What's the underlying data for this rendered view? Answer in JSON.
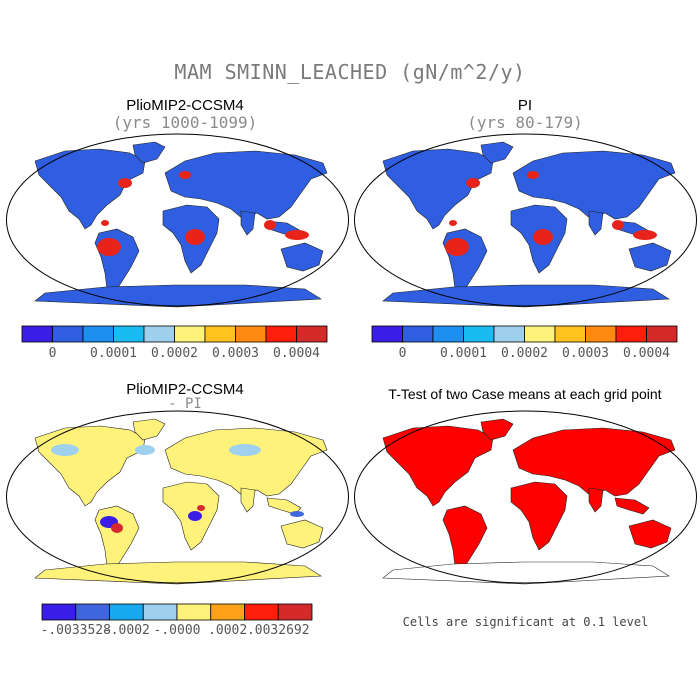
{
  "main_title": "MAM SMINN_LEACHED (gN/m^2/y)",
  "panels": [
    {
      "id": "pliomip",
      "title": "PlioMIP2-CCSM4",
      "subtitle": "(yrs 1000-1099)"
    },
    {
      "id": "pi",
      "title": "PI",
      "subtitle": "(yrs 80-179)"
    },
    {
      "id": "diff",
      "title": "PlioMIP2-CCSM4",
      "subtitle": "- PI"
    },
    {
      "id": "ttest",
      "title": "T-Test of two Case means at each grid point",
      "subtitle": ""
    }
  ],
  "colorbar_top": {
    "colors": [
      "#3a1ee8",
      "#2f5fe0",
      "#1e8ef0",
      "#18bcf2",
      "#9fd0ee",
      "#fff27a",
      "#ffc21e",
      "#ff8a12",
      "#ff1e0a",
      "#d42a2a"
    ],
    "labels": [
      "0",
      "0.0001",
      "0.0002",
      "0.0003",
      "0.0004"
    ]
  },
  "colorbar_diff": {
    "colors": [
      "#3a1ee8",
      "#3f66dc",
      "#18a8f0",
      "#9fd0ee",
      "#fff27a",
      "#ffa21a",
      "#ff1e0a",
      "#d42a2a"
    ],
    "labels": [
      "-.0033528",
      "-.0002",
      "-.0000",
      ".0002",
      ".0032692"
    ]
  },
  "significance_note": "Cells are significant at 0.1 level",
  "map_colors": {
    "ocean": "#ffffff",
    "land_base_abs": "#2f5fe0",
    "high_abs": "#e8231a",
    "land_base_diff": "#fff27a",
    "light_blue": "#9fd0ee",
    "significant": "#ff0000"
  }
}
